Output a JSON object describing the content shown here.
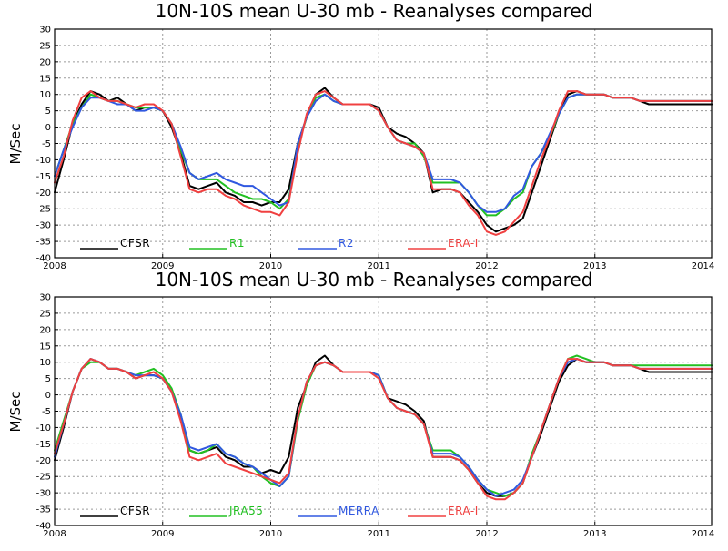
{
  "colors": {
    "CFSR": "#000000",
    "R1": "#22c022",
    "R2": "#3058e0",
    "ERA-I": "#f04040",
    "JRA55": "#22c022",
    "MERRA": "#3058e0"
  },
  "chart_data": [
    {
      "type": "line",
      "title": "10N-10S mean U-30 mb - Reanalyses compared",
      "xlabel": "",
      "ylabel": "M/Sec",
      "xlim": [
        2008,
        2014.08
      ],
      "ylim": [
        -40,
        30
      ],
      "xticks": [
        "2008",
        "2009",
        "2010",
        "2011",
        "2012",
        "2013",
        "2014"
      ],
      "yticks": [
        30,
        25,
        20,
        15,
        10,
        5,
        0,
        -5,
        -10,
        -15,
        -20,
        -25,
        -30,
        -35,
        -40
      ],
      "grid": true,
      "legend_position": "bottom-left inside",
      "x": [
        2008.0,
        2008.083,
        2008.167,
        2008.25,
        2008.333,
        2008.417,
        2008.5,
        2008.583,
        2008.667,
        2008.75,
        2008.833,
        2008.917,
        2009.0,
        2009.083,
        2009.167,
        2009.25,
        2009.333,
        2009.417,
        2009.5,
        2009.583,
        2009.667,
        2009.75,
        2009.833,
        2009.917,
        2010.0,
        2010.083,
        2010.167,
        2010.25,
        2010.333,
        2010.417,
        2010.5,
        2010.583,
        2010.667,
        2010.75,
        2010.833,
        2010.917,
        2011.0,
        2011.083,
        2011.167,
        2011.25,
        2011.333,
        2011.417,
        2011.5,
        2011.583,
        2011.667,
        2011.75,
        2011.833,
        2011.917,
        2012.0,
        2012.083,
        2012.167,
        2012.25,
        2012.333,
        2012.417,
        2012.5,
        2012.583,
        2012.667,
        2012.75,
        2012.833,
        2012.917,
        2013.0,
        2013.083,
        2013.167,
        2013.25,
        2013.333,
        2013.417,
        2013.5,
        2013.583,
        2013.667,
        2013.75,
        2013.833,
        2013.917,
        2014.0,
        2014.083
      ],
      "series": [
        {
          "name": "CFSR",
          "values": [
            -20,
            -10,
            1,
            7,
            11,
            10,
            8,
            9,
            7,
            5,
            6,
            6,
            5,
            0,
            -8,
            -18,
            -19,
            -18,
            -17,
            -20,
            -21,
            -23,
            -23,
            -24,
            -23,
            -23,
            -19,
            -5,
            3,
            10,
            12,
            9,
            7,
            7,
            7,
            7,
            6,
            0,
            -2,
            -3,
            -5,
            -8,
            -20,
            -19,
            -19,
            -20,
            -23,
            -26,
            -30,
            -32,
            -31,
            -30,
            -28,
            -20,
            -12,
            -4,
            4,
            10,
            11,
            10,
            10,
            10,
            9,
            9,
            9,
            8,
            7,
            7,
            7,
            7,
            7,
            7,
            7,
            7
          ]
        },
        {
          "name": "R1",
          "values": [
            -15,
            -7,
            1,
            6,
            10,
            9,
            8,
            8,
            7,
            6,
            6,
            6,
            5,
            1,
            -7,
            -14,
            -16,
            -16,
            -16,
            -18,
            -20,
            -21,
            -22,
            -22,
            -23,
            -25,
            -22,
            -6,
            3,
            9,
            10,
            8,
            7,
            7,
            7,
            7,
            5,
            0,
            -4,
            -5,
            -5,
            -9,
            -17,
            -17,
            -17,
            -17,
            -20,
            -24,
            -27,
            -27,
            -25,
            -22,
            -20,
            -12,
            -8,
            -3,
            4,
            9,
            10,
            10,
            10,
            10,
            9,
            9,
            9,
            8,
            8,
            8,
            8,
            8,
            8,
            8,
            8,
            8
          ]
        },
        {
          "name": "R2",
          "values": [
            -15,
            -7,
            0,
            6,
            9,
            9,
            8,
            7,
            7,
            5,
            5,
            6,
            5,
            1,
            -6,
            -14,
            -16,
            -15,
            -14,
            -16,
            -17,
            -18,
            -18,
            -20,
            -22,
            -24,
            -23,
            -5,
            3,
            8,
            10,
            8,
            7,
            7,
            7,
            7,
            5,
            0,
            -4,
            -5,
            -6,
            -8,
            -16,
            -16,
            -16,
            -17,
            -20,
            -24,
            -26,
            -26,
            -25,
            -21,
            -19,
            -12,
            -8,
            -2,
            4,
            9,
            10,
            10,
            10,
            10,
            9,
            9,
            9,
            8,
            8,
            8,
            8,
            8,
            8,
            8,
            8,
            8
          ]
        },
        {
          "name": "ERA-I",
          "values": [
            -17,
            -9,
            2,
            9,
            11,
            9,
            8,
            8,
            7,
            6,
            7,
            7,
            5,
            1,
            -9,
            -19,
            -20,
            -19,
            -19,
            -21,
            -22,
            -24,
            -25,
            -26,
            -26,
            -27,
            -23,
            -8,
            4,
            10,
            11,
            9,
            7,
            7,
            7,
            7,
            5,
            0,
            -4,
            -5,
            -6,
            -8,
            -19,
            -19,
            -19,
            -20,
            -24,
            -27,
            -32,
            -33,
            -32,
            -29,
            -26,
            -18,
            -10,
            -3,
            5,
            11,
            11,
            10,
            10,
            10,
            9,
            9,
            9,
            8,
            8,
            8,
            8,
            8,
            8,
            8,
            8,
            8
          ]
        }
      ]
    },
    {
      "type": "line",
      "title": "10N-10S mean U-30 mb - Reanalyses compared",
      "xlabel": "",
      "ylabel": "M/Sec",
      "xlim": [
        2008,
        2014.08
      ],
      "ylim": [
        -40,
        30
      ],
      "xticks": [
        "2008",
        "2009",
        "2010",
        "2011",
        "2012",
        "2013",
        "2014"
      ],
      "yticks": [
        30,
        25,
        20,
        15,
        10,
        5,
        0,
        -5,
        -10,
        -15,
        -20,
        -25,
        -30,
        -35,
        -40
      ],
      "grid": true,
      "legend_position": "bottom-left inside",
      "x": [
        2008.0,
        2008.083,
        2008.167,
        2008.25,
        2008.333,
        2008.417,
        2008.5,
        2008.583,
        2008.667,
        2008.75,
        2008.833,
        2008.917,
        2009.0,
        2009.083,
        2009.167,
        2009.25,
        2009.333,
        2009.417,
        2009.5,
        2009.583,
        2009.667,
        2009.75,
        2009.833,
        2009.917,
        2010.0,
        2010.083,
        2010.167,
        2010.25,
        2010.333,
        2010.417,
        2010.5,
        2010.583,
        2010.667,
        2010.75,
        2010.833,
        2010.917,
        2011.0,
        2011.083,
        2011.167,
        2011.25,
        2011.333,
        2011.417,
        2011.5,
        2011.583,
        2011.667,
        2011.75,
        2011.833,
        2011.917,
        2012.0,
        2012.083,
        2012.167,
        2012.25,
        2012.333,
        2012.417,
        2012.5,
        2012.583,
        2012.667,
        2012.75,
        2012.833,
        2012.917,
        2013.0,
        2013.083,
        2013.167,
        2013.25,
        2013.333,
        2013.417,
        2013.5,
        2013.583,
        2013.667,
        2013.75,
        2013.833,
        2013.917,
        2014.0,
        2014.083
      ],
      "series": [
        {
          "name": "CFSR",
          "values": [
            -20,
            -10,
            1,
            8,
            11,
            10,
            8,
            8,
            7,
            5,
            6,
            6,
            5,
            1,
            -7,
            -17,
            -18,
            -17,
            -16,
            -19,
            -20,
            -22,
            -22,
            -24,
            -23,
            -24,
            -19,
            -4,
            3,
            10,
            12,
            9,
            7,
            7,
            7,
            7,
            6,
            -1,
            -2,
            -3,
            -5,
            -8,
            -19,
            -19,
            -19,
            -20,
            -23,
            -27,
            -30,
            -31,
            -31,
            -30,
            -27,
            -19,
            -12,
            -4,
            4,
            9,
            11,
            10,
            10,
            10,
            9,
            9,
            9,
            8,
            7,
            7,
            7,
            7,
            7,
            7,
            7,
            7
          ]
        },
        {
          "name": "JRA55",
          "values": [
            -17,
            -8,
            1,
            8,
            10,
            10,
            8,
            8,
            7,
            6,
            7,
            8,
            6,
            2,
            -6,
            -17,
            -18,
            -17,
            -15,
            -18,
            -19,
            -21,
            -22,
            -25,
            -27,
            -28,
            -25,
            -8,
            3,
            9,
            10,
            9,
            7,
            7,
            7,
            7,
            6,
            -1,
            -4,
            -5,
            -6,
            -9,
            -17,
            -17,
            -17,
            -19,
            -22,
            -26,
            -29,
            -30,
            -31,
            -30,
            -27,
            -18,
            -11,
            -3,
            5,
            11,
            12,
            11,
            10,
            10,
            9,
            9,
            9,
            9,
            9,
            9,
            9,
            9,
            9,
            9,
            9,
            9
          ]
        },
        {
          "name": "MERRA",
          "values": [
            -19,
            -9,
            1,
            8,
            11,
            10,
            8,
            8,
            7,
            6,
            6,
            6,
            5,
            1,
            -6,
            -16,
            -17,
            -16,
            -15,
            -18,
            -19,
            -21,
            -22,
            -24,
            -26,
            -28,
            -25,
            -7,
            4,
            9,
            10,
            9,
            7,
            7,
            7,
            7,
            6,
            -1,
            -4,
            -5,
            -6,
            -9,
            -18,
            -18,
            -18,
            -19,
            -22,
            -26,
            -29,
            -31,
            -30,
            -29,
            -26,
            -19,
            -11,
            -3,
            5,
            10,
            11,
            10,
            10,
            10,
            9,
            9,
            9,
            8,
            8,
            8,
            8,
            8,
            8,
            8,
            8,
            8
          ]
        },
        {
          "name": "ERA-I",
          "values": [
            -18,
            -9,
            1,
            8,
            11,
            10,
            8,
            8,
            7,
            5,
            6,
            7,
            5,
            1,
            -8,
            -19,
            -20,
            -19,
            -18,
            -21,
            -22,
            -23,
            -24,
            -25,
            -26,
            -27,
            -24,
            -7,
            4,
            9,
            10,
            9,
            7,
            7,
            7,
            7,
            5,
            -1,
            -4,
            -5,
            -6,
            -9,
            -19,
            -19,
            -19,
            -20,
            -23,
            -27,
            -31,
            -32,
            -32,
            -30,
            -27,
            -19,
            -11,
            -3,
            5,
            11,
            11,
            10,
            10,
            10,
            9,
            9,
            9,
            8,
            8,
            8,
            8,
            8,
            8,
            8,
            8,
            8
          ]
        }
      ]
    }
  ]
}
